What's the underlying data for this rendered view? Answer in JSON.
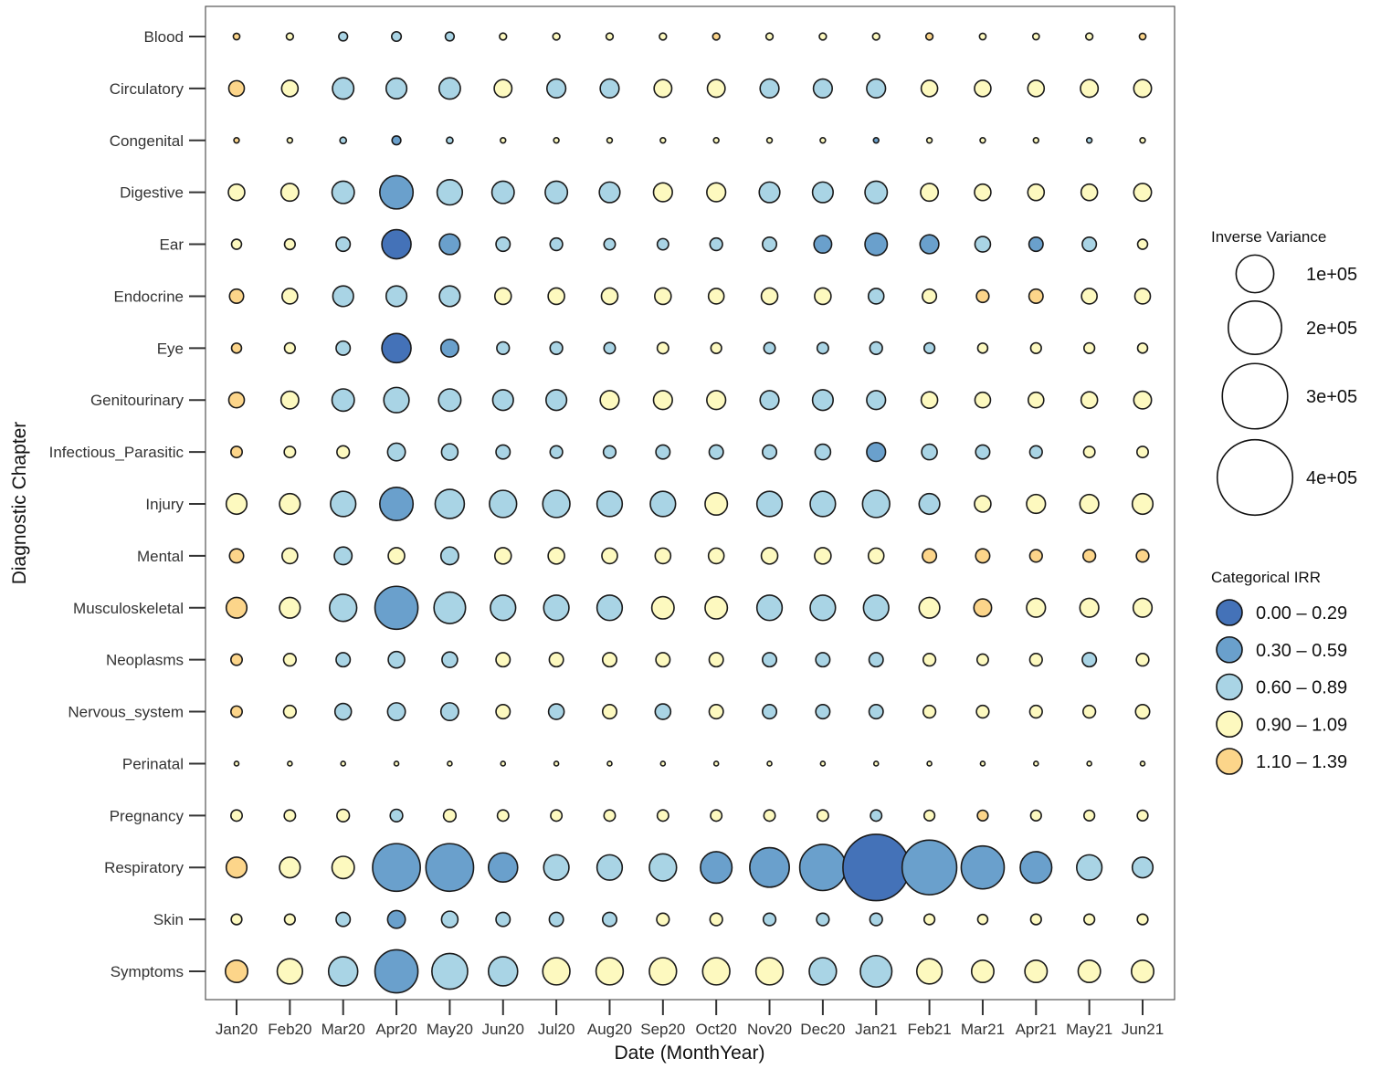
{
  "chart_data": {
    "type": "scatter",
    "subtype": "bubble-grid",
    "title": "",
    "xlabel": "Date (MonthYear)",
    "ylabel": "Diagnostic Chapter",
    "x_categories": [
      "Jan20",
      "Feb20",
      "Mar20",
      "Apr20",
      "May20",
      "Jun20",
      "Jul20",
      "Aug20",
      "Sep20",
      "Oct20",
      "Nov20",
      "Dec20",
      "Jan21",
      "Feb21",
      "Mar21",
      "Apr21",
      "May21",
      "Jun21"
    ],
    "y_categories": [
      "Blood",
      "Circulatory",
      "Congenital",
      "Digestive",
      "Ear",
      "Endocrine",
      "Eye",
      "Genitourinary",
      "Infectious_Parasitic",
      "Injury",
      "Mental",
      "Musculoskeletal",
      "Neoplasms",
      "Nervous_system",
      "Perinatal",
      "Pregnancy",
      "Respiratory",
      "Skin",
      "Symptoms"
    ],
    "size_legend": {
      "title": "Inverse Variance",
      "entries": [
        {
          "label": "1e+05",
          "value": 100000
        },
        {
          "label": "2e+05",
          "value": 200000
        },
        {
          "label": "3e+05",
          "value": 300000
        },
        {
          "label": "4e+05",
          "value": 400000
        }
      ]
    },
    "color_legend": {
      "title": "Categorical IRR",
      "entries": [
        {
          "label": "0.00 – 0.29",
          "color": "#4472b8"
        },
        {
          "label": "0.30 – 0.59",
          "color": "#6aa0cc"
        },
        {
          "label": "0.60 – 0.89",
          "color": "#a9d4e5"
        },
        {
          "label": "0.90 – 1.09",
          "color": "#fdf9bf"
        },
        {
          "label": "1.10 – 1.39",
          "color": "#fcd58a"
        }
      ]
    },
    "grid": false,
    "legend_position": "right",
    "size_values": [
      [
        3000,
        3500,
        5500,
        6500,
        5500,
        3500,
        3500,
        3500,
        3500,
        3500,
        3500,
        3500,
        3500,
        3500,
        3000,
        3000,
        3500,
        3000
      ],
      [
        17000,
        19000,
        32000,
        30000,
        32000,
        22000,
        25000,
        25000,
        22000,
        22000,
        25000,
        25000,
        25000,
        19000,
        19000,
        19000,
        22000,
        22000
      ],
      [
        2000,
        2000,
        3000,
        5500,
        3000,
        2000,
        2000,
        2000,
        2000,
        2000,
        2000,
        2000,
        2000,
        2000,
        2000,
        2000,
        2000,
        2000
      ],
      [
        19000,
        22000,
        35000,
        78000,
        45000,
        35000,
        35000,
        30000,
        25000,
        25000,
        30000,
        30000,
        35000,
        22000,
        19000,
        19000,
        19000,
        22000
      ],
      [
        7000,
        8000,
        14000,
        60000,
        30000,
        14000,
        11000,
        9000,
        9000,
        11000,
        14000,
        22000,
        35000,
        25000,
        17000,
        14000,
        14000,
        7000
      ],
      [
        14000,
        17000,
        30000,
        30000,
        30000,
        19000,
        19000,
        19000,
        19000,
        17000,
        19000,
        19000,
        17000,
        14000,
        11000,
        14000,
        17000,
        17000
      ],
      [
        7000,
        8000,
        14000,
        60000,
        22000,
        11000,
        11000,
        9000,
        9000,
        8000,
        9000,
        9000,
        11000,
        8000,
        7000,
        8000,
        8000,
        7000
      ],
      [
        17000,
        22000,
        35000,
        45000,
        35000,
        30000,
        30000,
        25000,
        25000,
        25000,
        25000,
        30000,
        25000,
        19000,
        17000,
        17000,
        19000,
        22000
      ],
      [
        9000,
        9000,
        11000,
        22000,
        19000,
        14000,
        11000,
        11000,
        14000,
        14000,
        14000,
        17000,
        25000,
        17000,
        14000,
        11000,
        9000,
        9000
      ],
      [
        30000,
        30000,
        45000,
        78000,
        60000,
        52000,
        52000,
        45000,
        45000,
        35000,
        45000,
        45000,
        52000,
        30000,
        19000,
        25000,
        25000,
        30000
      ],
      [
        14000,
        17000,
        22000,
        19000,
        22000,
        19000,
        19000,
        17000,
        17000,
        17000,
        19000,
        19000,
        17000,
        14000,
        14000,
        11000,
        11000,
        11000
      ],
      [
        30000,
        30000,
        52000,
        130000,
        70000,
        45000,
        45000,
        45000,
        35000,
        35000,
        45000,
        45000,
        45000,
        30000,
        22000,
        25000,
        25000,
        25000
      ],
      [
        9000,
        11000,
        14000,
        19000,
        17000,
        14000,
        14000,
        14000,
        14000,
        14000,
        14000,
        14000,
        14000,
        11000,
        9000,
        11000,
        14000,
        11000
      ],
      [
        9000,
        11000,
        19000,
        22000,
        22000,
        14000,
        17000,
        14000,
        17000,
        14000,
        14000,
        14000,
        14000,
        11000,
        11000,
        11000,
        11000,
        14000
      ],
      [
        900,
        900,
        900,
        900,
        900,
        900,
        900,
        900,
        900,
        900,
        900,
        900,
        900,
        900,
        900,
        900,
        900,
        900
      ],
      [
        9000,
        9000,
        11000,
        11000,
        11000,
        9000,
        9000,
        9000,
        9000,
        9000,
        9000,
        9000,
        9000,
        8000,
        8000,
        8000,
        8000,
        8000
      ],
      [
        30000,
        30000,
        35000,
        160000,
        160000,
        60000,
        45000,
        45000,
        52000,
        70000,
        110000,
        150000,
        310000,
        210000,
        130000,
        70000,
        45000,
        30000
      ],
      [
        8000,
        8000,
        14000,
        22000,
        19000,
        14000,
        14000,
        14000,
        11000,
        11000,
        11000,
        11000,
        11000,
        8000,
        7000,
        8000,
        8000,
        8000
      ],
      [
        35000,
        45000,
        60000,
        130000,
        90000,
        60000,
        52000,
        52000,
        52000,
        52000,
        52000,
        52000,
        70000,
        45000,
        35000,
        35000,
        35000,
        35000
      ]
    ],
    "irr_category": [
      [
        4,
        3,
        2,
        2,
        2,
        3,
        3,
        3,
        3,
        4,
        3,
        3,
        3,
        4,
        3,
        3,
        3,
        4
      ],
      [
        4,
        3,
        2,
        2,
        2,
        3,
        2,
        2,
        3,
        3,
        2,
        2,
        2,
        3,
        3,
        3,
        3,
        3
      ],
      [
        4,
        3,
        2,
        1,
        2,
        3,
        3,
        3,
        3,
        3,
        3,
        3,
        1,
        3,
        3,
        3,
        2,
        3
      ],
      [
        3,
        3,
        2,
        1,
        2,
        2,
        2,
        2,
        3,
        3,
        2,
        2,
        2,
        3,
        3,
        3,
        3,
        3
      ],
      [
        3,
        3,
        2,
        0,
        1,
        2,
        2,
        2,
        2,
        2,
        2,
        1,
        1,
        1,
        2,
        1,
        2,
        3
      ],
      [
        4,
        3,
        2,
        2,
        2,
        3,
        3,
        3,
        3,
        3,
        3,
        3,
        2,
        3,
        4,
        4,
        3,
        3
      ],
      [
        4,
        3,
        2,
        0,
        1,
        2,
        2,
        2,
        3,
        3,
        2,
        2,
        2,
        2,
        3,
        3,
        3,
        3
      ],
      [
        4,
        3,
        2,
        2,
        2,
        2,
        2,
        3,
        3,
        3,
        2,
        2,
        2,
        3,
        3,
        3,
        3,
        3
      ],
      [
        4,
        3,
        3,
        2,
        2,
        2,
        2,
        2,
        2,
        2,
        2,
        2,
        1,
        2,
        2,
        2,
        3,
        3
      ],
      [
        3,
        3,
        2,
        1,
        2,
        2,
        2,
        2,
        2,
        3,
        2,
        2,
        2,
        2,
        3,
        3,
        3,
        3
      ],
      [
        4,
        3,
        2,
        3,
        2,
        3,
        3,
        3,
        3,
        3,
        3,
        3,
        3,
        4,
        4,
        4,
        4,
        4
      ],
      [
        4,
        3,
        2,
        1,
        2,
        2,
        2,
        2,
        3,
        3,
        2,
        2,
        2,
        3,
        4,
        3,
        3,
        3
      ],
      [
        4,
        3,
        2,
        2,
        2,
        3,
        3,
        3,
        3,
        3,
        2,
        2,
        2,
        3,
        3,
        3,
        2,
        3
      ],
      [
        4,
        3,
        2,
        2,
        2,
        3,
        2,
        3,
        2,
        3,
        2,
        2,
        2,
        3,
        3,
        3,
        3,
        3
      ],
      [
        3,
        3,
        3,
        3,
        3,
        3,
        3,
        3,
        3,
        3,
        3,
        3,
        3,
        3,
        3,
        3,
        3,
        3
      ],
      [
        3,
        3,
        3,
        2,
        3,
        3,
        3,
        3,
        3,
        3,
        3,
        3,
        2,
        3,
        4,
        3,
        3,
        3
      ],
      [
        4,
        3,
        3,
        1,
        1,
        1,
        2,
        2,
        2,
        1,
        1,
        1,
        0,
        1,
        1,
        1,
        2,
        2
      ],
      [
        3,
        3,
        2,
        1,
        2,
        2,
        2,
        2,
        3,
        3,
        2,
        2,
        2,
        3,
        3,
        3,
        3,
        3
      ],
      [
        4,
        3,
        2,
        1,
        2,
        2,
        3,
        3,
        3,
        3,
        3,
        2,
        2,
        3,
        3,
        3,
        3,
        3
      ]
    ]
  }
}
